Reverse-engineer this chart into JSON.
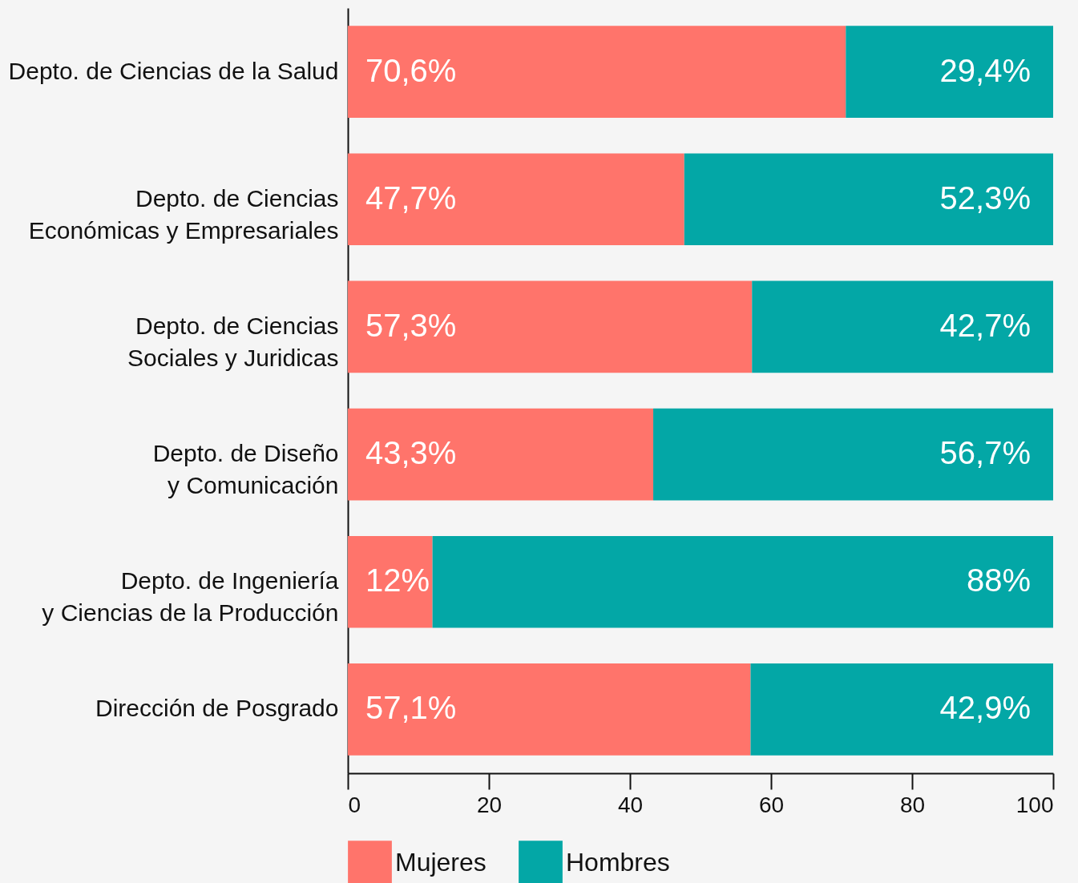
{
  "chart_data": {
    "type": "bar",
    "orientation": "horizontal",
    "stacked": true,
    "categories": [
      "Depto. de Ciencias de la Salud",
      "Depto. de Ciencias\nEconómicas y Empresariales",
      "Depto. de Ciencias\nSociales y Juridicas",
      "Depto. de Diseño\ny Comunicación",
      "Depto. de Ingeniería\ny Ciencias de la Producción",
      "Dirección de Posgrado"
    ],
    "series": [
      {
        "name": "Mujeres",
        "color": "#ff746b",
        "values": [
          70.6,
          47.7,
          57.3,
          43.3,
          12,
          57.1
        ],
        "value_labels": [
          "70,6%",
          "47,7%",
          "57,3%",
          "43,3%",
          "12%",
          "57,1%"
        ]
      },
      {
        "name": "Hombres",
        "color": "#03a7a6",
        "values": [
          29.4,
          52.3,
          42.7,
          56.7,
          88,
          42.9
        ],
        "value_labels": [
          "29,4%",
          "52,3%",
          "42,7%",
          "56,7%",
          "88%",
          "42,9%"
        ]
      }
    ],
    "xlim": [
      0,
      100
    ],
    "xticks": [
      0,
      20,
      40,
      60,
      80,
      100
    ],
    "legend": "bottom"
  }
}
